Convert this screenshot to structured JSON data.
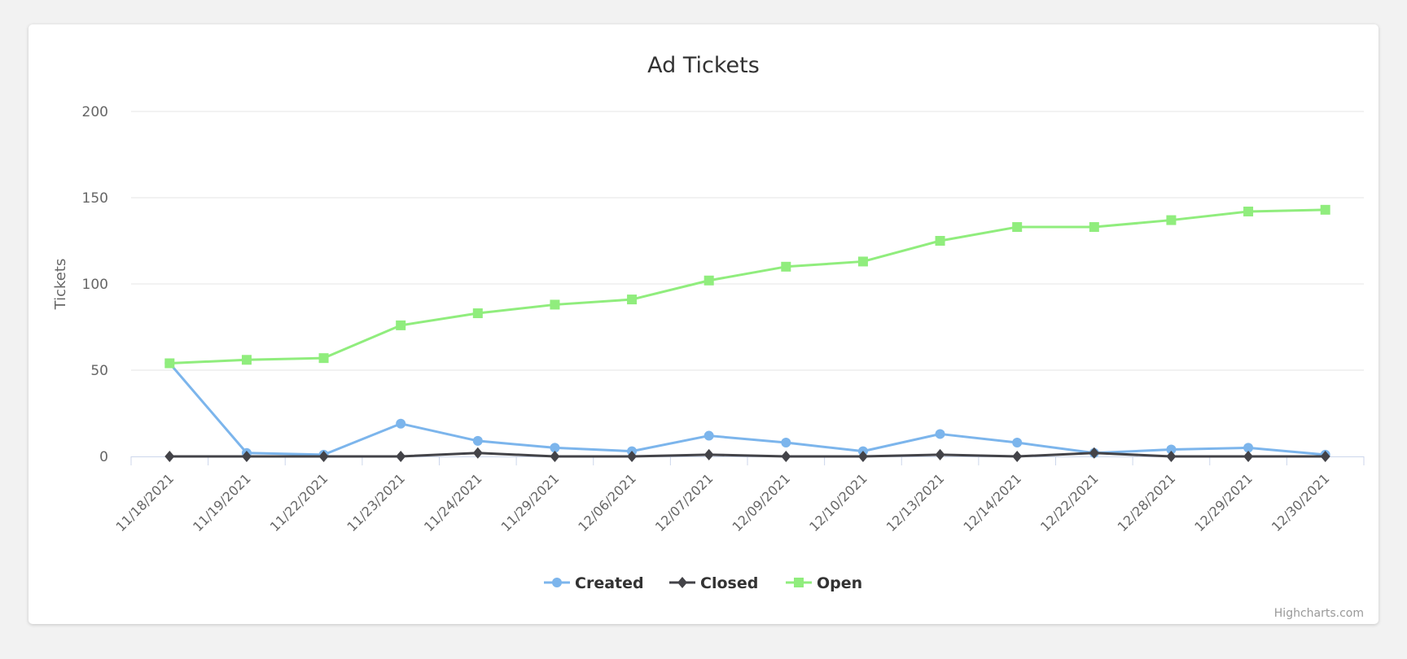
{
  "chart_data": {
    "type": "line",
    "title": "Ad Tickets",
    "xlabel": "",
    "ylabel": "Tickets",
    "ylim": [
      0,
      200
    ],
    "yticks": [
      0,
      50,
      100,
      150,
      200
    ],
    "grid": true,
    "legend_placement": "bottom-center",
    "categories": [
      "11/18/2021",
      "11/19/2021",
      "11/22/2021",
      "11/23/2021",
      "11/24/2021",
      "11/29/2021",
      "12/06/2021",
      "12/07/2021",
      "12/09/2021",
      "12/10/2021",
      "12/13/2021",
      "12/14/2021",
      "12/22/2021",
      "12/28/2021",
      "12/29/2021",
      "12/30/2021"
    ],
    "series": [
      {
        "name": "Created",
        "color": "#7cb5ec",
        "marker": "circle",
        "values": [
          54,
          2,
          1,
          19,
          9,
          5,
          3,
          12,
          8,
          3,
          13,
          8,
          2,
          4,
          5,
          1
        ]
      },
      {
        "name": "Closed",
        "color": "#434348",
        "marker": "diamond",
        "values": [
          0,
          0,
          0,
          0,
          2,
          0,
          0,
          1,
          0,
          0,
          1,
          0,
          2,
          0,
          0,
          0
        ]
      },
      {
        "name": "Open",
        "color": "#90ed7d",
        "marker": "square",
        "values": [
          54,
          56,
          57,
          76,
          83,
          88,
          91,
          102,
          110,
          113,
          125,
          133,
          133,
          137,
          142,
          143
        ]
      }
    ]
  },
  "credits": "Highcharts.com"
}
